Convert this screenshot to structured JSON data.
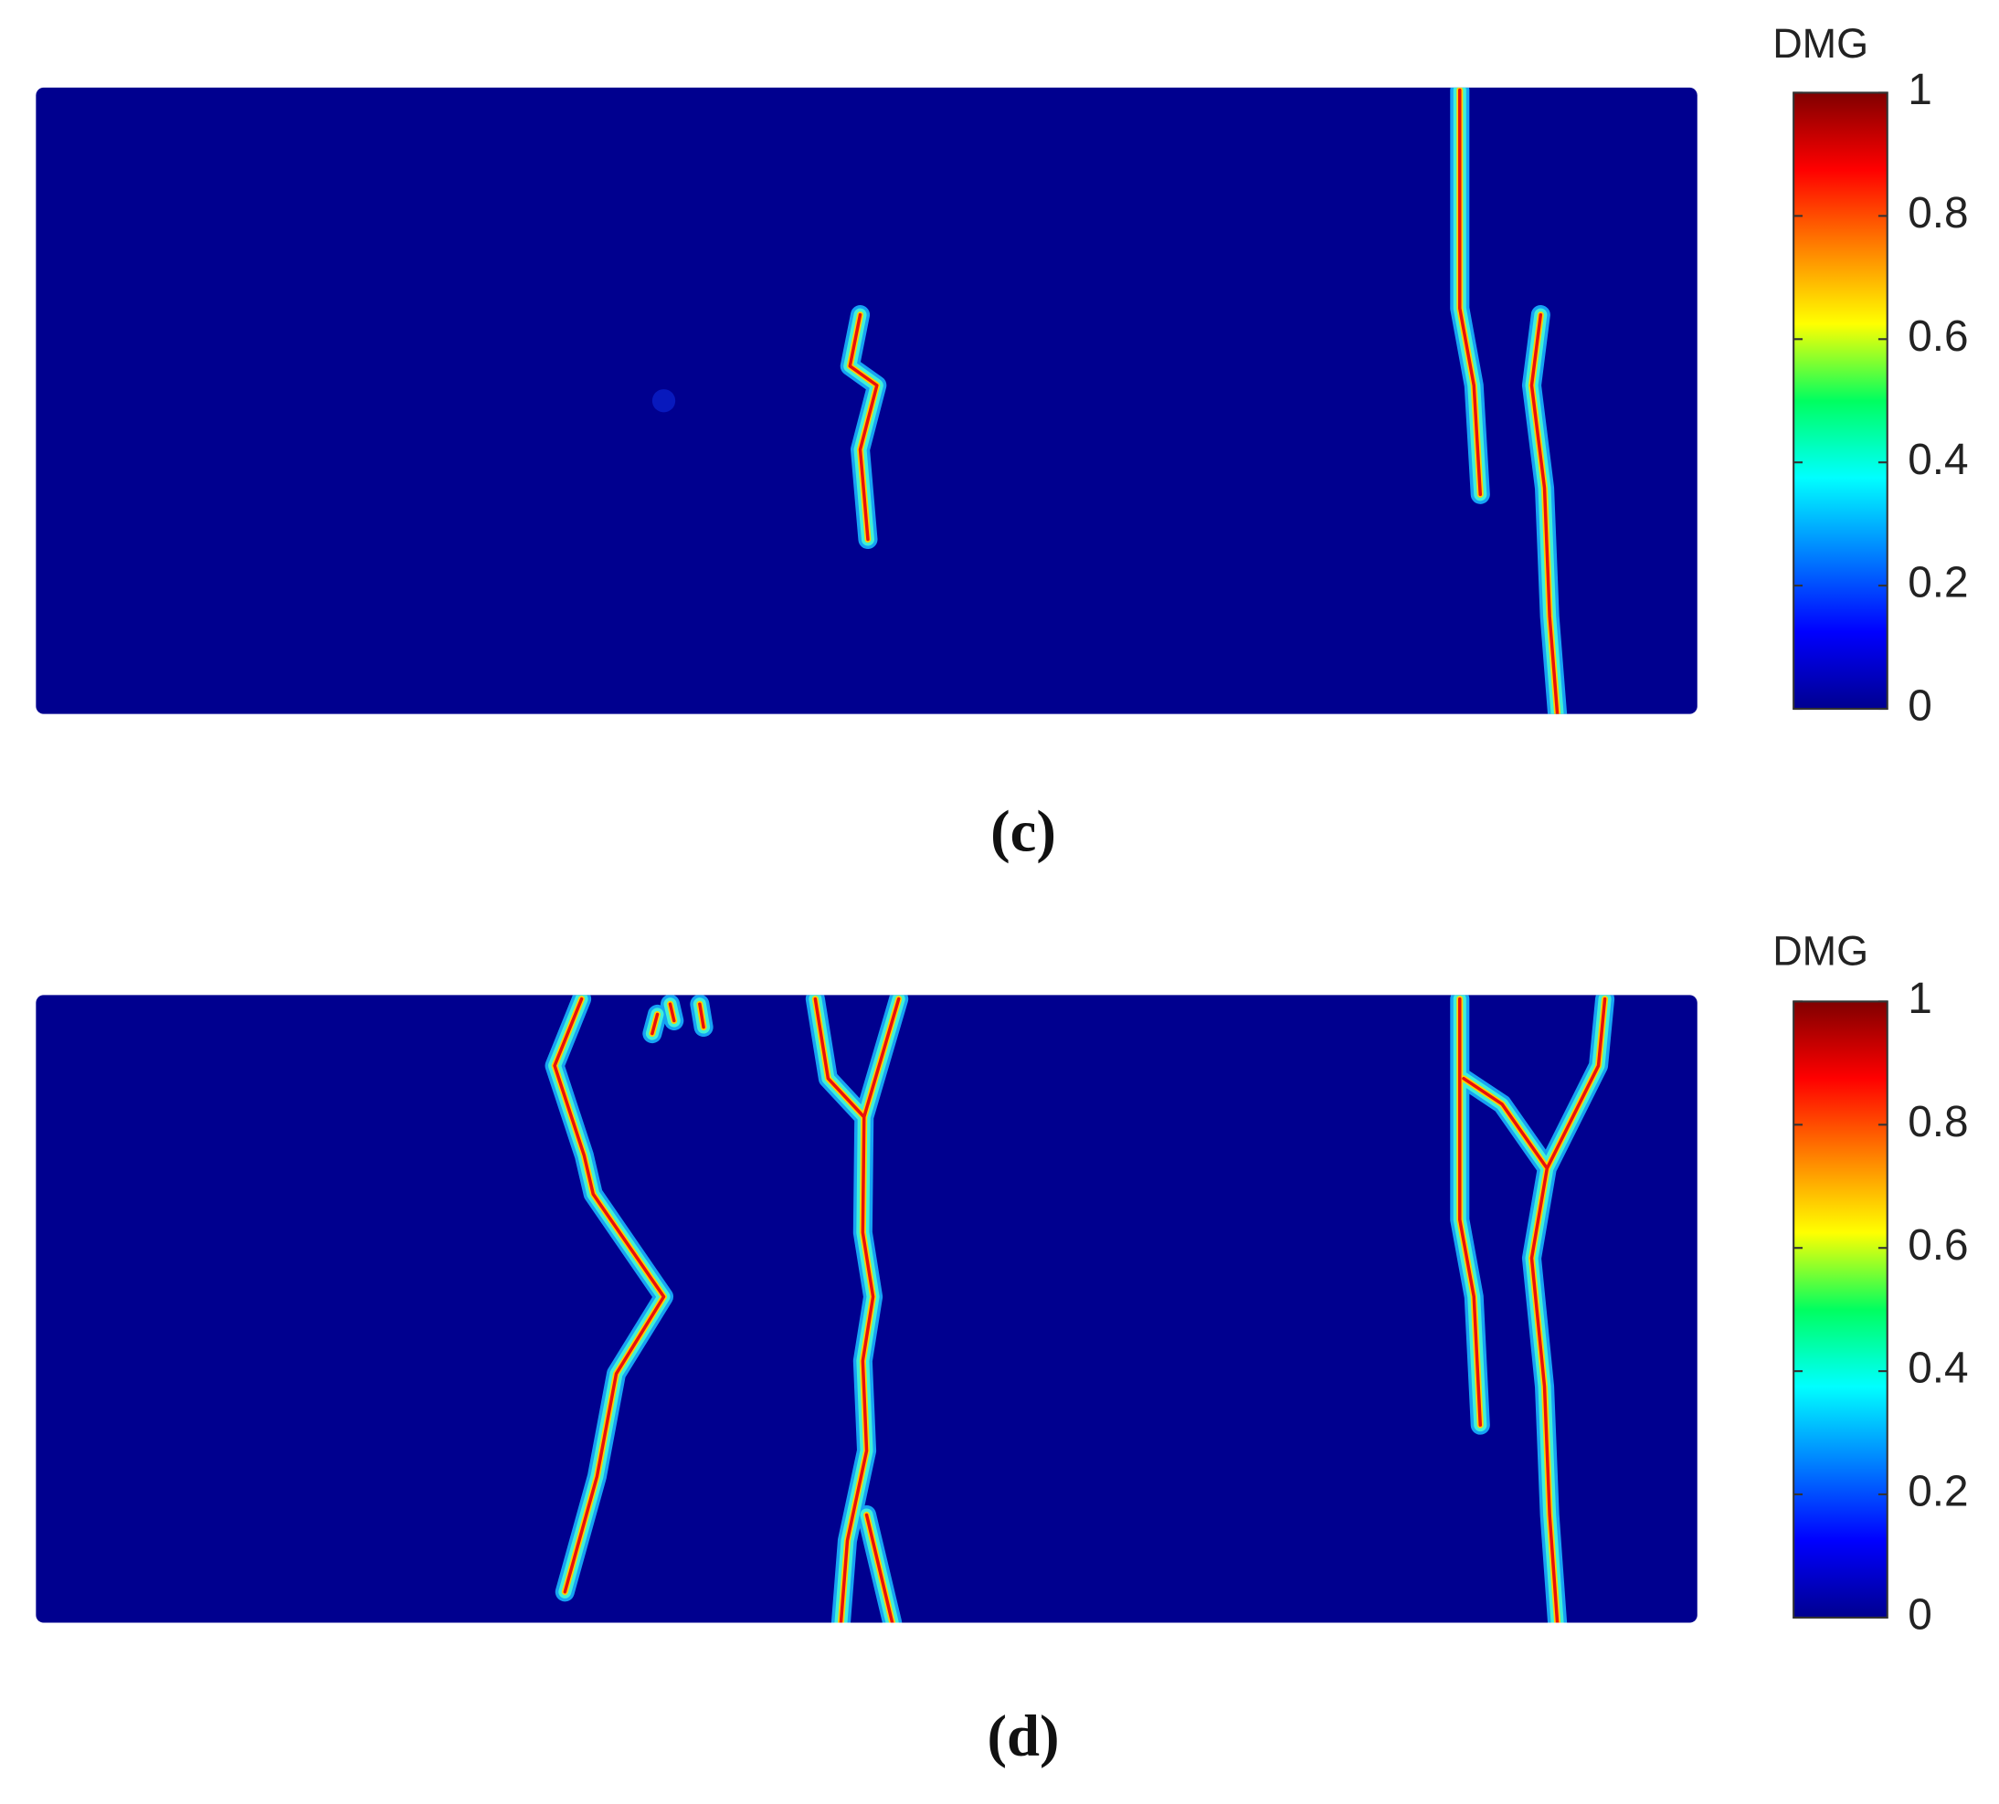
{
  "panels": [
    {
      "label": "(c)",
      "colorbar": {
        "title": "DMG",
        "lim": [
          0,
          1
        ],
        "ticks": [
          0,
          0.2,
          0.4,
          0.6,
          0.8,
          1
        ]
      }
    },
    {
      "label": "(d)",
      "colorbar": {
        "title": "DMG",
        "lim": [
          0,
          1
        ],
        "ticks": [
          0,
          0.2,
          0.4,
          0.6,
          0.8,
          1
        ]
      }
    }
  ]
}
